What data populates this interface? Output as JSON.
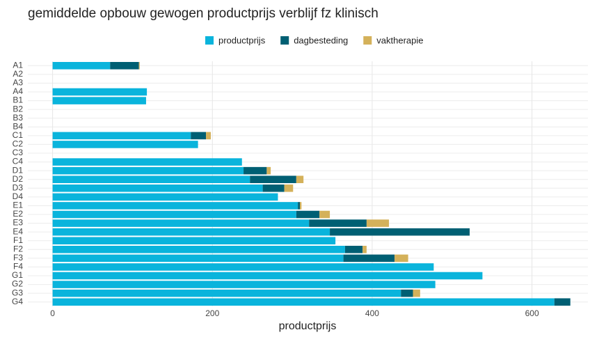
{
  "chart_data": {
    "type": "stacked-barh",
    "title": "gemiddelde opbouw gewogen productprijs verblijf fz klinisch",
    "xlabel": "productprijs",
    "categories": [
      "A1",
      "A2",
      "A3",
      "A4",
      "B1",
      "B2",
      "B3",
      "B4",
      "C1",
      "C2",
      "C3",
      "C4",
      "D1",
      "D2",
      "D3",
      "D4",
      "E1",
      "E2",
      "E3",
      "E4",
      "F1",
      "F2",
      "F3",
      "F4",
      "G1",
      "G2",
      "G3",
      "G4"
    ],
    "series": [
      {
        "name": "productprijs",
        "color": "#0ab4dc",
        "values": [
          72,
          null,
          null,
          118,
          117,
          null,
          null,
          null,
          173,
          182,
          null,
          237,
          239,
          247,
          263,
          282,
          307,
          305,
          321,
          347,
          354,
          366,
          364,
          477,
          538,
          479,
          436,
          628
        ]
      },
      {
        "name": "dagbesteding",
        "color": "#005f73",
        "values": [
          36,
          null,
          null,
          null,
          null,
          null,
          null,
          null,
          19,
          null,
          null,
          null,
          29,
          58,
          27,
          null,
          2.5,
          29,
          72,
          175,
          null,
          22,
          64,
          null,
          null,
          null,
          15,
          20
        ]
      },
      {
        "name": "vaktherapie",
        "color": "#d4b15a",
        "values": [
          1,
          null,
          null,
          null,
          null,
          null,
          null,
          null,
          6,
          null,
          null,
          null,
          5,
          9,
          11,
          null,
          2,
          13,
          28,
          null,
          null,
          5,
          17,
          null,
          null,
          null,
          9,
          null
        ]
      }
    ],
    "xlim": [
      -31,
      670
    ],
    "xticks": [
      0,
      200,
      400,
      600
    ],
    "grid": true,
    "legend": "top"
  }
}
